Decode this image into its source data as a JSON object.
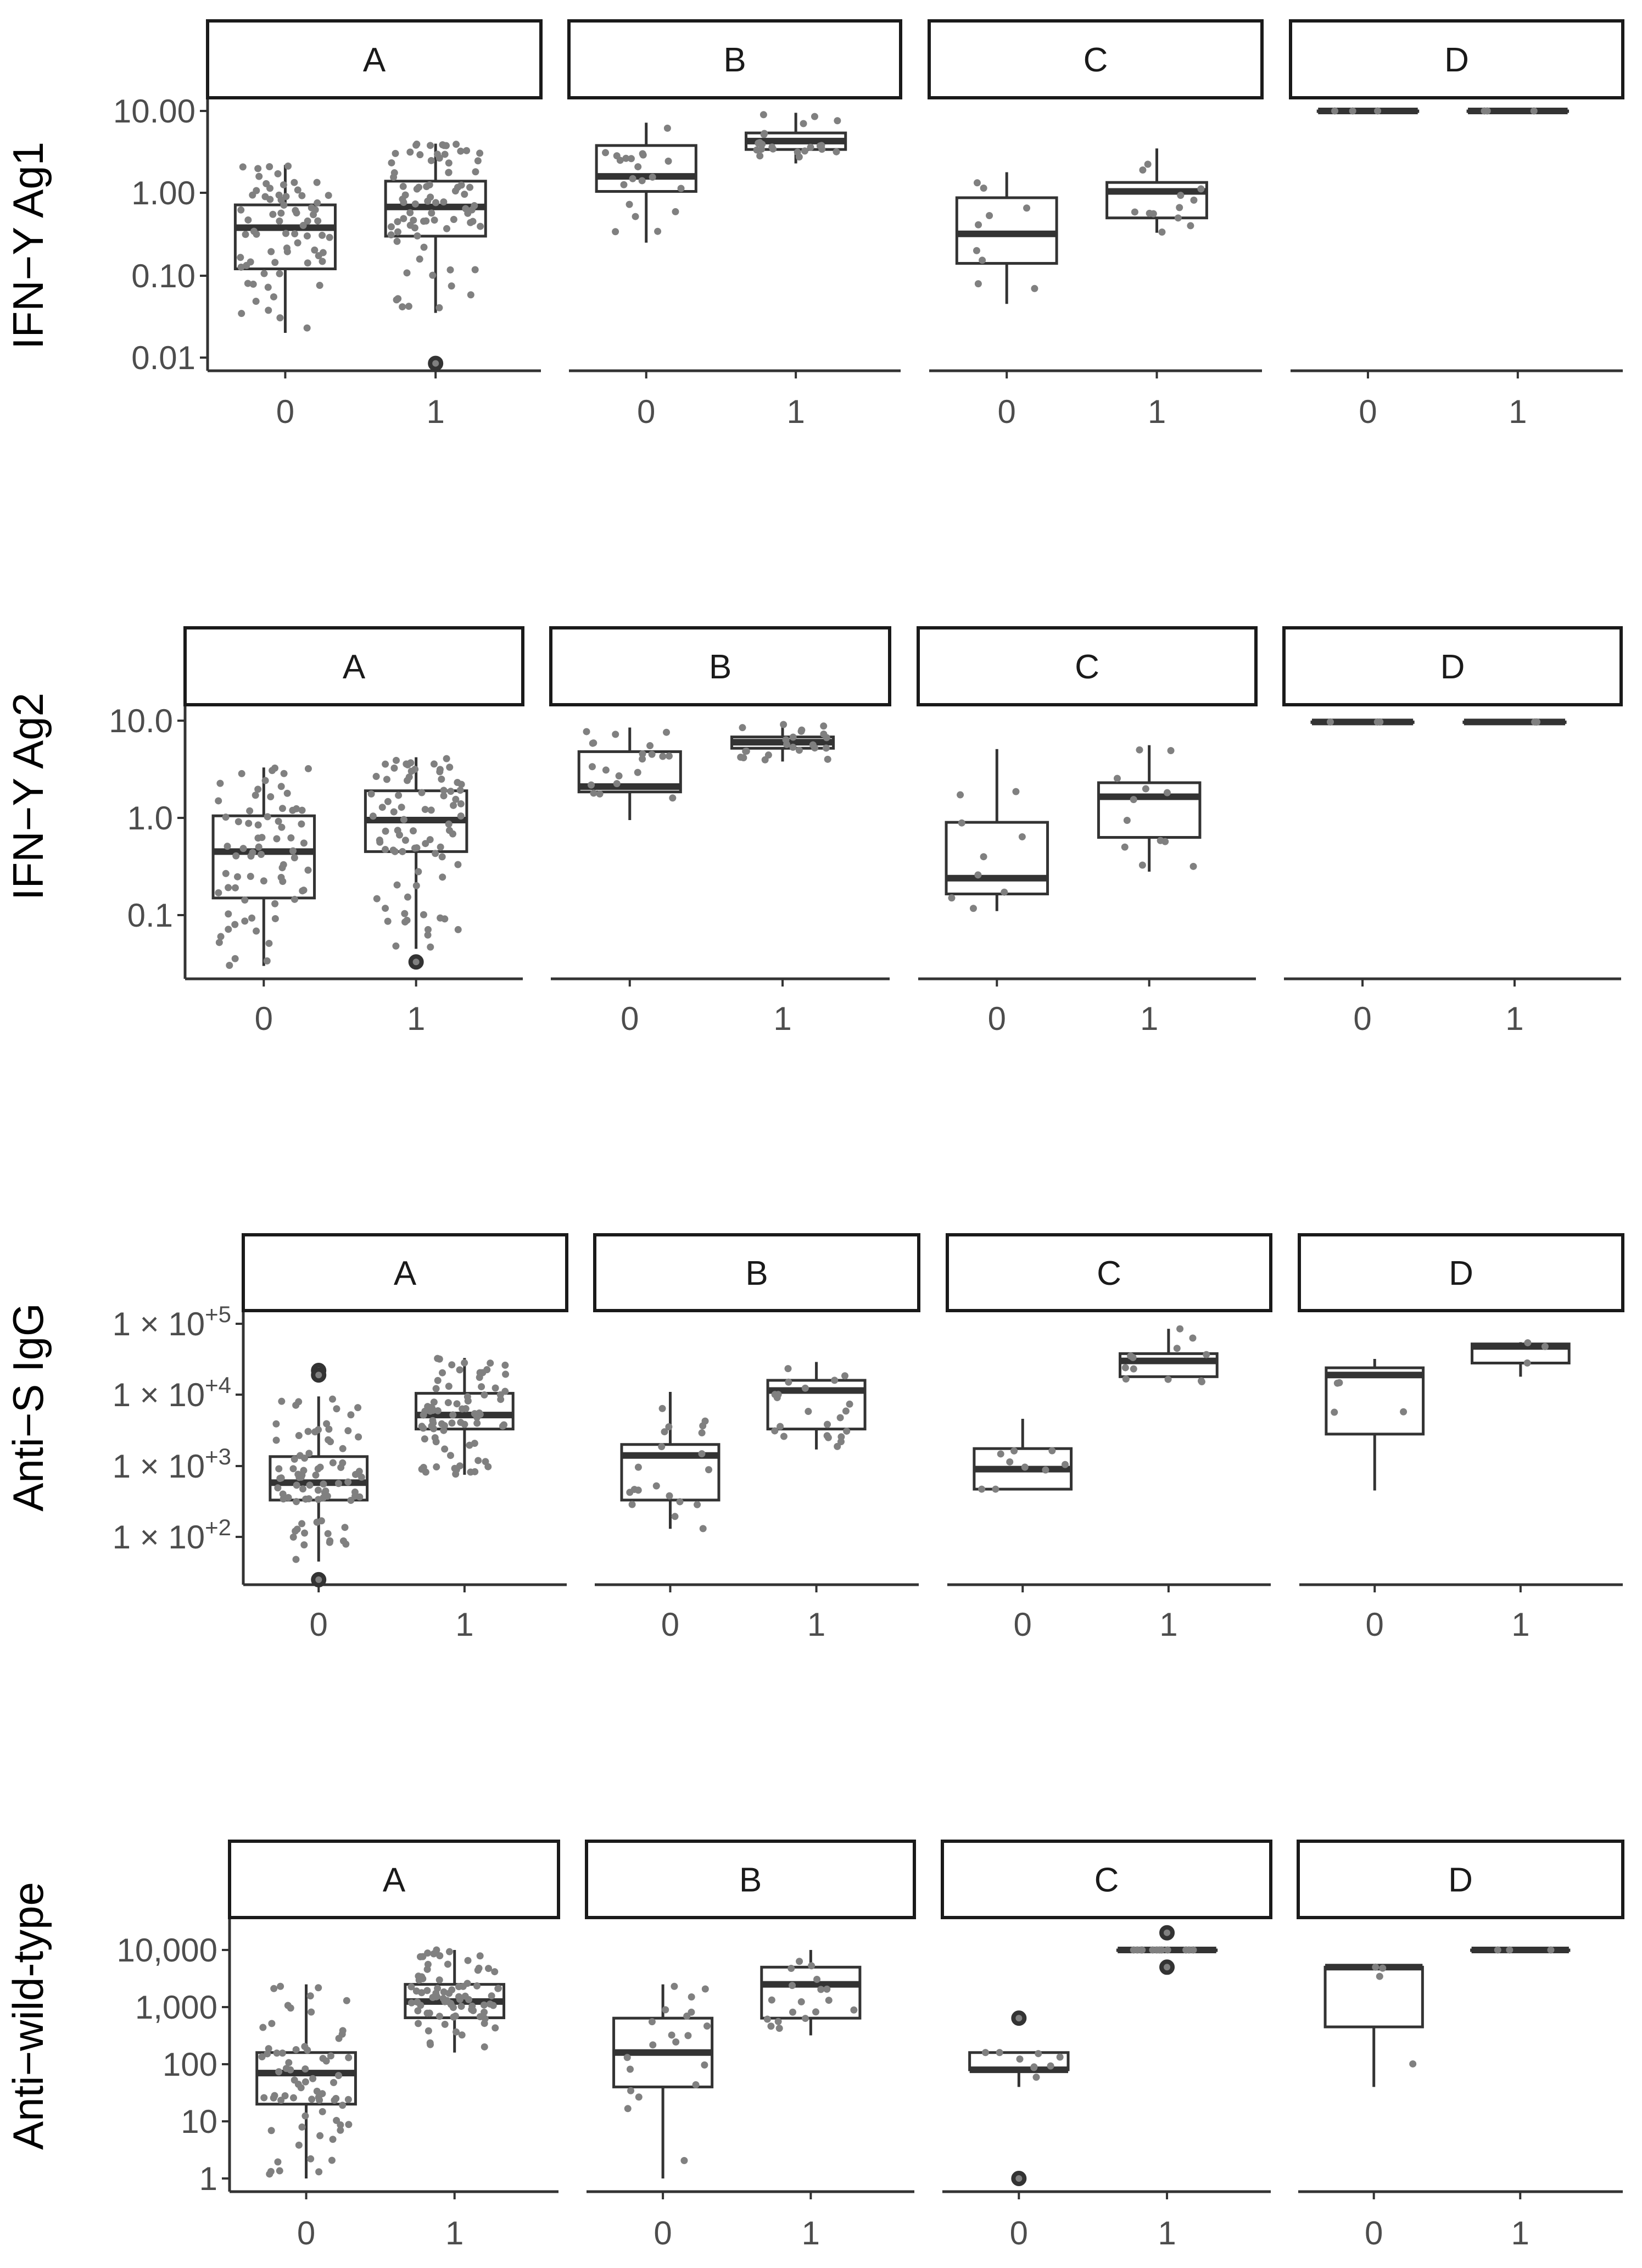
{
  "colors": {
    "box_line": "#333333",
    "point": "#808080",
    "outlier": "#333333",
    "axis": "#333333",
    "strip_border": "#1a1a1a",
    "background": "#ffffff"
  },
  "chart_data": [
    {
      "type": "boxplot",
      "ylabel": "IFN−Y Ag1",
      "scale": "log10",
      "ylim": [
        0.0075,
        25
      ],
      "yticks": [
        0.01,
        0.1,
        1,
        10
      ],
      "ytick_labels": [
        "0.01",
        "0.10",
        "1.00",
        "10.00"
      ],
      "x_categories": [
        "0",
        "1"
      ],
      "panels": [
        {
          "label": "A",
          "groups": [
            {
              "x": "0",
              "min": 0.02,
              "q1": 0.12,
              "median": 0.38,
              "q3": 0.72,
              "max": 2.2,
              "outliers": [],
              "n_points": 70
            },
            {
              "x": "1",
              "min": 0.035,
              "q1": 0.3,
              "median": 0.68,
              "q3": 1.4,
              "max": 4.0,
              "outliers": [
                0.0085
              ],
              "n_points": 80
            }
          ]
        },
        {
          "label": "B",
          "groups": [
            {
              "x": "0",
              "min": 0.25,
              "q1": 1.05,
              "median": 1.6,
              "q3": 3.8,
              "max": 7.2,
              "outliers": [],
              "n_points": 20
            },
            {
              "x": "1",
              "min": 2.3,
              "q1": 3.4,
              "median": 4.3,
              "q3": 5.4,
              "max": 9.5,
              "outliers": [],
              "n_points": 22
            }
          ]
        },
        {
          "label": "C",
          "groups": [
            {
              "x": "0",
              "min": 0.045,
              "q1": 0.14,
              "median": 0.32,
              "q3": 0.88,
              "max": 1.8,
              "outliers": [],
              "n_points": 9
            },
            {
              "x": "1",
              "min": 0.33,
              "q1": 0.5,
              "median": 1.05,
              "q3": 1.35,
              "max": 3.5,
              "outliers": [],
              "n_points": 12
            }
          ]
        },
        {
          "label": "D",
          "groups": [
            {
              "x": "0",
              "min": 10,
              "q1": 10,
              "median": 10,
              "q3": 10,
              "max": 10,
              "outliers": [],
              "n_points": 3
            },
            {
              "x": "1",
              "min": 10,
              "q1": 10,
              "median": 10,
              "q3": 10,
              "max": 10,
              "outliers": [],
              "n_points": 3
            }
          ]
        }
      ]
    },
    {
      "type": "boxplot",
      "ylabel": "IFN−Y Ag2",
      "scale": "log10",
      "ylim": [
        0.028,
        14
      ],
      "yticks": [
        0.1,
        1,
        10
      ],
      "ytick_labels": [
        "0.1",
        "1.0",
        "10.0"
      ],
      "x_categories": [
        "0",
        "1"
      ],
      "panels": [
        {
          "label": "A",
          "groups": [
            {
              "x": "0",
              "min": 0.03,
              "q1": 0.15,
              "median": 0.45,
              "q3": 1.05,
              "max": 3.3,
              "outliers": [],
              "n_points": 70
            },
            {
              "x": "1",
              "min": 0.045,
              "q1": 0.45,
              "median": 0.95,
              "q3": 1.9,
              "max": 4.2,
              "outliers": [
                0.033
              ],
              "n_points": 80
            }
          ]
        },
        {
          "label": "B",
          "groups": [
            {
              "x": "0",
              "min": 0.95,
              "q1": 1.85,
              "median": 2.1,
              "q3": 4.8,
              "max": 8.5,
              "outliers": [],
              "n_points": 20
            },
            {
              "x": "1",
              "min": 3.8,
              "q1": 5.2,
              "median": 6.0,
              "q3": 6.8,
              "max": 9.5,
              "outliers": [],
              "n_points": 22
            }
          ]
        },
        {
          "label": "C",
          "groups": [
            {
              "x": "0",
              "min": 0.11,
              "q1": 0.165,
              "median": 0.24,
              "q3": 0.9,
              "max": 5.1,
              "outliers": [],
              "n_points": 9
            },
            {
              "x": "1",
              "min": 0.28,
              "q1": 0.63,
              "median": 1.65,
              "q3": 2.3,
              "max": 5.6,
              "outliers": [],
              "n_points": 12
            }
          ]
        },
        {
          "label": "D",
          "groups": [
            {
              "x": "0",
              "min": 9.7,
              "q1": 9.7,
              "median": 9.7,
              "q3": 9.7,
              "max": 9.7,
              "outliers": [],
              "n_points": 3
            },
            {
              "x": "1",
              "min": 9.7,
              "q1": 9.7,
              "median": 9.7,
              "q3": 9.7,
              "max": 9.7,
              "outliers": [],
              "n_points": 3
            }
          ]
        }
      ]
    },
    {
      "type": "boxplot",
      "ylabel": "Anti−S IgG",
      "scale": "log10",
      "ylim": [
        18,
        140000
      ],
      "yticks": [
        100,
        1000,
        10000,
        100000
      ],
      "ytick_labels": [
        "1 × 10+2",
        "1 × 10+3",
        "1 × 10+4",
        "1 × 10+5"
      ],
      "ytick_parts": [
        {
          "base": "1 × 10",
          "exp": "+2"
        },
        {
          "base": "1 × 10",
          "exp": "+3"
        },
        {
          "base": "1 × 10",
          "exp": "+4"
        },
        {
          "base": "1 × 10",
          "exp": "+5"
        }
      ],
      "x_categories": [
        "0",
        "1"
      ],
      "panels": [
        {
          "label": "A",
          "groups": [
            {
              "x": "0",
              "min": 45,
              "q1": 330,
              "median": 580,
              "q3": 1350,
              "max": 9500,
              "outliers": [
                22000,
                19000,
                25
              ],
              "n_points": 80
            },
            {
              "x": "1",
              "min": 750,
              "q1": 3300,
              "median": 5200,
              "q3": 10500,
              "max": 33000,
              "outliers": [],
              "n_points": 80
            }
          ]
        },
        {
          "label": "B",
          "groups": [
            {
              "x": "0",
              "min": 130,
              "q1": 330,
              "median": 1400,
              "q3": 2000,
              "max": 11000,
              "outliers": [],
              "n_points": 20
            },
            {
              "x": "1",
              "min": 1700,
              "q1": 3300,
              "median": 11500,
              "q3": 16000,
              "max": 29000,
              "outliers": [],
              "n_points": 22
            }
          ]
        },
        {
          "label": "C",
          "groups": [
            {
              "x": "0",
              "min": 470,
              "q1": 470,
              "median": 900,
              "q3": 1750,
              "max": 4600,
              "outliers": [],
              "n_points": 9
            },
            {
              "x": "1",
              "min": 15000,
              "q1": 18000,
              "median": 30000,
              "q3": 38000,
              "max": 85000,
              "outliers": [],
              "n_points": 12
            }
          ]
        },
        {
          "label": "D",
          "groups": [
            {
              "x": "0",
              "min": 450,
              "q1": 2800,
              "median": 19000,
              "q3": 24000,
              "max": 32000,
              "outliers": [],
              "n_points": 4
            },
            {
              "x": "1",
              "min": 18000,
              "q1": 28000,
              "median": 48000,
              "q3": 52000,
              "max": 55000,
              "outliers": [],
              "n_points": 3
            }
          ]
        }
      ]
    },
    {
      "type": "boxplot",
      "ylabel": "Anti−wild-type",
      "scale": "log10",
      "ylim": [
        0.8,
        25000
      ],
      "yticks": [
        1,
        10,
        100,
        1000,
        10000
      ],
      "ytick_labels": [
        "1",
        "10",
        "100",
        "1,000",
        "10,000"
      ],
      "x_categories": [
        "0",
        "1"
      ],
      "panels": [
        {
          "label": "A",
          "groups": [
            {
              "x": "0",
              "min": 1,
              "q1": 20,
              "median": 70,
              "q3": 160,
              "max": 2500,
              "outliers": [],
              "n_points": 70
            },
            {
              "x": "1",
              "min": 160,
              "q1": 650,
              "median": 1250,
              "q3": 2500,
              "max": 10000,
              "outliers": [],
              "n_points": 80
            }
          ]
        },
        {
          "label": "B",
          "groups": [
            {
              "x": "0",
              "min": 1,
              "q1": 40,
              "median": 160,
              "q3": 640,
              "max": 2500,
              "outliers": [],
              "n_points": 20
            },
            {
              "x": "1",
              "min": 320,
              "q1": 640,
              "median": 2500,
              "q3": 5000,
              "max": 10000,
              "outliers": [],
              "n_points": 18
            }
          ]
        },
        {
          "label": "C",
          "groups": [
            {
              "x": "0",
              "min": 40,
              "q1": 80,
              "median": 80,
              "q3": 160,
              "max": 160,
              "outliers": [
                640,
                1
              ],
              "n_points": 9
            },
            {
              "x": "1",
              "min": 10000,
              "q1": 10000,
              "median": 10000,
              "q3": 10000,
              "max": 10000,
              "outliers": [
                20000,
                5000
              ],
              "n_points": 12
            }
          ]
        },
        {
          "label": "D",
          "groups": [
            {
              "x": "0",
              "min": 40,
              "q1": 450,
              "median": 5000,
              "q3": 5000,
              "max": 5000,
              "outliers": [],
              "n_points": 4
            },
            {
              "x": "1",
              "min": 10000,
              "q1": 10000,
              "median": 10000,
              "q3": 10000,
              "max": 10000,
              "outliers": [],
              "n_points": 3
            }
          ]
        }
      ]
    }
  ]
}
